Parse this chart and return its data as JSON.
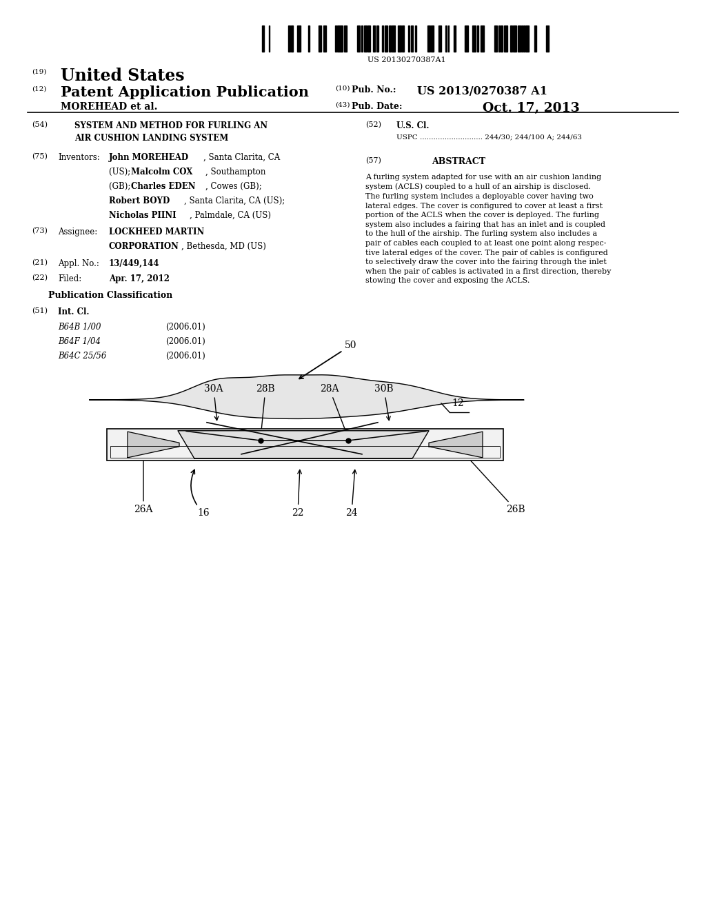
{
  "background_color": "#ffffff",
  "barcode_text": "US 20130270387A1",
  "title_19": "(19)",
  "title_us": "United States",
  "title_12": "(12)",
  "title_pat": "Patent Application Publication",
  "title_10": "(10)",
  "pub_no_label": "Pub. No.:",
  "pub_no": "US 2013/0270387 A1",
  "inventor_line": "MOREHEAD et al.",
  "title_43": "(43)",
  "pub_date_label": "Pub. Date:",
  "pub_date": "Oct. 17, 2013",
  "field_54_num": "(54)",
  "field_54_title": "SYSTEM AND METHOD FOR FURLING AN\nAIR CUSHION LANDING SYSTEM",
  "field_52_num": "(52)",
  "field_52_label": "U.S. Cl.",
  "field_52_uspc": "USPC ............................ 244/30; 244/100 A; 244/63",
  "field_75_num": "(75)",
  "field_75_label": "Inventors:",
  "field_57_num": "(57)",
  "field_57_label": "ABSTRACT",
  "abstract_text": "A furling system adapted for use with an air cushion landing\nsystem (ACLS) coupled to a hull of an airship is disclosed.\nThe furling system includes a deployable cover having two\nlateral edges. The cover is configured to cover at least a first\nportion of the ACLS when the cover is deployed. The furling\nsystem also includes a fairing that has an inlet and is coupled\nto the hull of the airship. The furling system also includes a\npair of cables each coupled to at least one point along respec-\ntive lateral edges of the cover. The pair of cables is configured\nto selectively draw the cover into the fairing through the inlet\nwhen the pair of cables is activated in a first direction, thereby\nstowing the cover and exposing the ACLS.",
  "field_73_num": "(73)",
  "field_73_label": "Assignee:",
  "field_21_num": "(21)",
  "field_21_label": "Appl. No.:",
  "field_21_val": "13/449,144",
  "field_22_num": "(22)",
  "field_22_label": "Filed:",
  "field_22_val": "Apr. 17, 2012",
  "pub_class_title": "Publication Classification",
  "field_51_num": "(51)",
  "field_51_label": "Int. Cl.",
  "int_cl_rows": [
    [
      "B64B 1/00",
      "(2006.01)"
    ],
    [
      "B64F 1/04",
      "(2006.01)"
    ],
    [
      "B64C 25/56",
      "(2006.01)"
    ]
  ]
}
